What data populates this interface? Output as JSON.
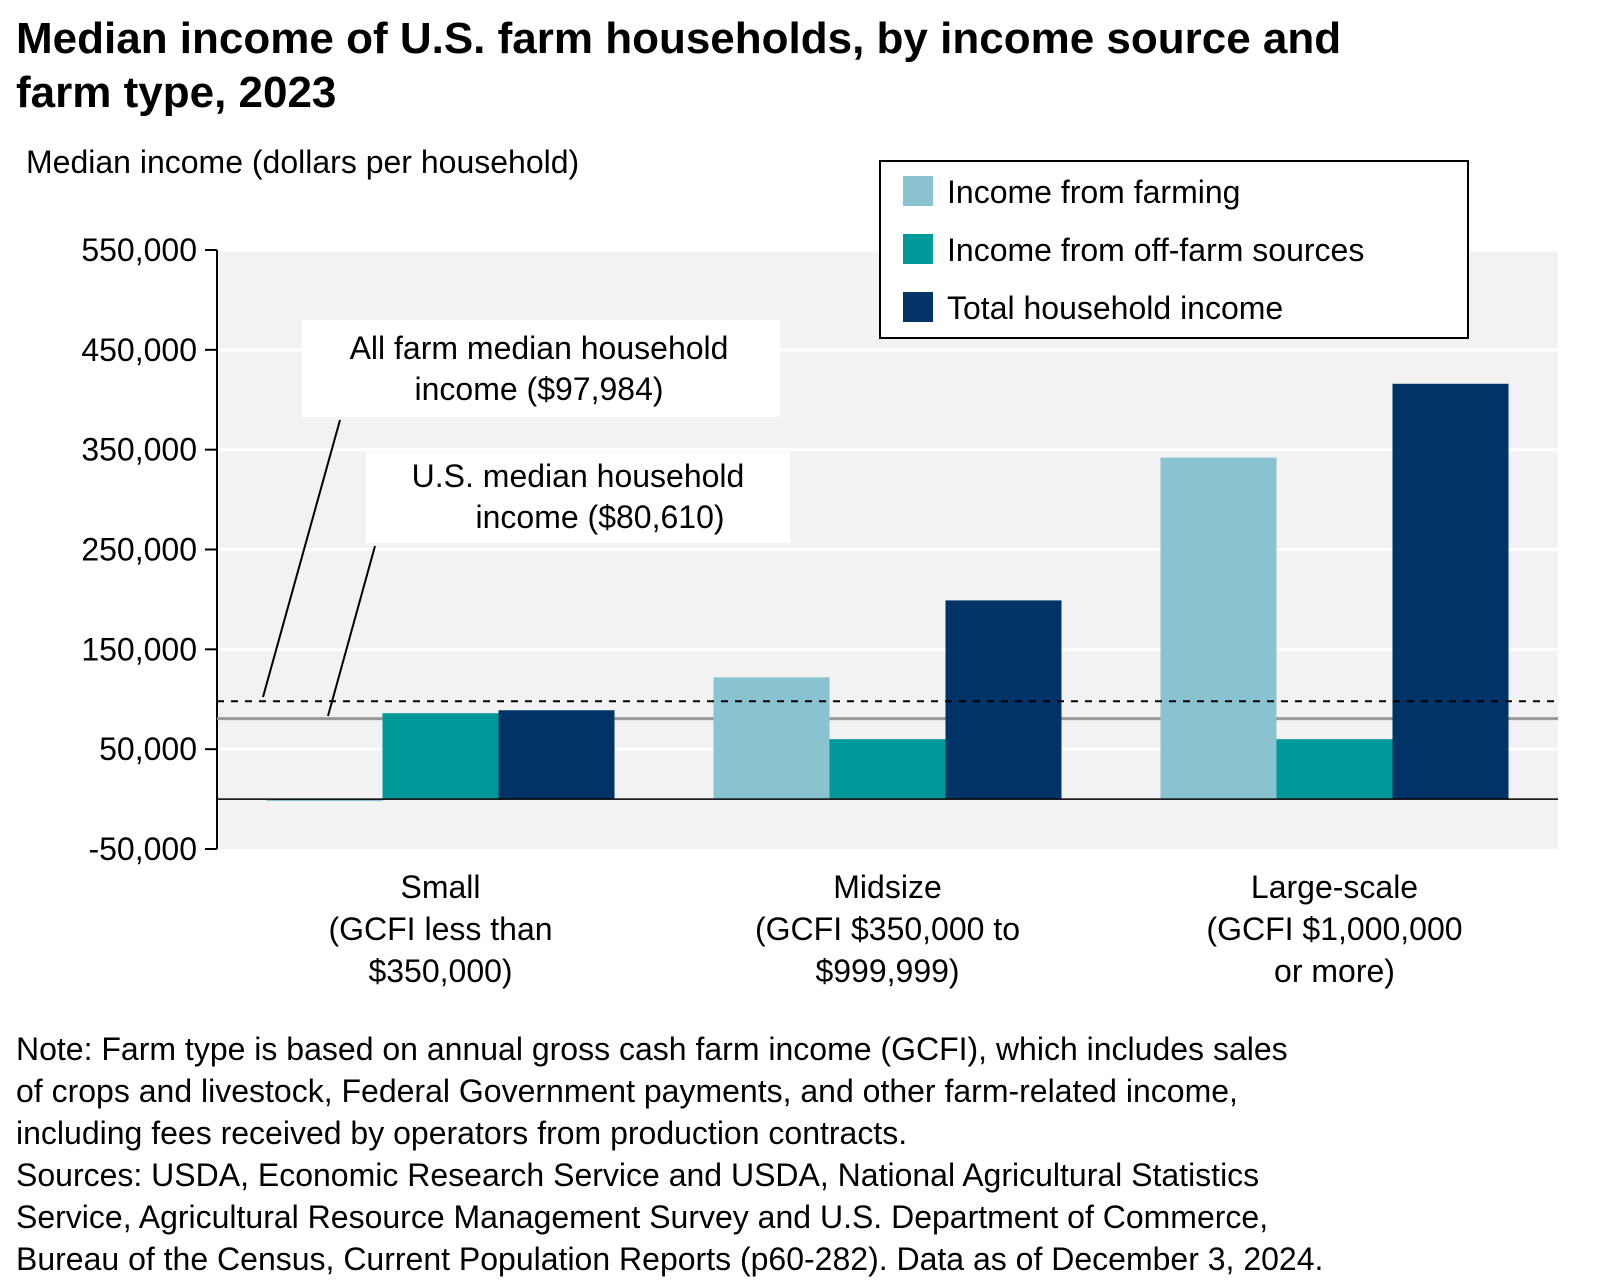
{
  "title_lines": [
    "Median income of U.S. farm households, by income source and",
    "farm type, 2023"
  ],
  "note_lines": [
    "Note: Farm type is based on annual gross cash farm income (GCFI), which includes sales",
    "of crops and livestock, Federal Government payments, and other farm-related income,",
    "including fees received by operators from production contracts.",
    "Sources: USDA, Economic Research Service and USDA, National Agricultural Statistics",
    "Service, Agricultural Resource Management Survey and U.S. Department of Commerce,",
    "Bureau of the Census, Current Population Reports (p60-282). Data as of December 3, 2024."
  ],
  "colors": {
    "farming": "#88c3cf",
    "off_farm": "#00999a",
    "total": "#003366",
    "plot_bg": "#f2f2f2",
    "reference_line": "#999999"
  },
  "chart_data": {
    "type": "bar",
    "title": "Median income of U.S. farm households, by income source and farm type, 2023",
    "ylabel": "Median income (dollars per household)",
    "xlabel": "",
    "ylim": [
      -50000,
      550000
    ],
    "yticks": [
      -50000,
      50000,
      150000,
      250000,
      350000,
      450000,
      550000
    ],
    "ytick_labels": [
      "-50,000",
      "50,000",
      "150,000",
      "250,000",
      "350,000",
      "450,000",
      "550,000"
    ],
    "grid": true,
    "legend_position": "top-right",
    "categories": [
      [
        "Small",
        "(GCFI less than",
        "$350,000)"
      ],
      [
        "Midsize",
        "(GCFI $350,000 to",
        "$999,999)"
      ],
      [
        "Large-scale",
        "(GCFI $1,000,000",
        "or more)"
      ]
    ],
    "series": [
      {
        "name": "Income from farming",
        "color": "#88c3cf",
        "values": [
          -2000,
          122000,
          342000
        ]
      },
      {
        "name": "Income from off-farm sources",
        "color": "#00999a",
        "values": [
          86000,
          60000,
          60000
        ]
      },
      {
        "name": "Total household income",
        "color": "#003366",
        "values": [
          89000,
          199000,
          416000
        ]
      }
    ],
    "reference_lines": [
      {
        "value": 97984,
        "style": "dashed",
        "label_lines": [
          "All farm median household",
          "income ($97,984)"
        ]
      },
      {
        "value": 80610,
        "style": "solid",
        "label_lines": [
          "U.S. median household",
          "income ($80,610)"
        ]
      }
    ]
  }
}
